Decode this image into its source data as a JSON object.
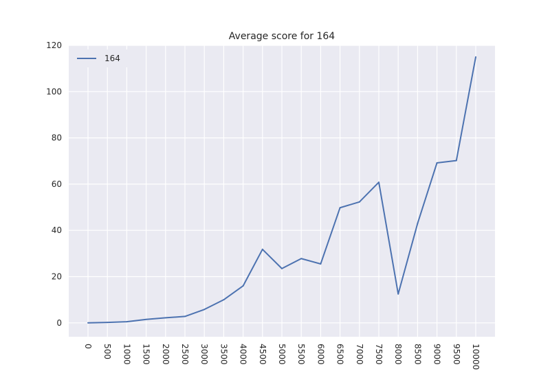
{
  "chart_data": {
    "type": "line",
    "title": "Average score for 164",
    "xlabel": "",
    "ylabel": "",
    "categories": [
      "0",
      "500",
      "1000",
      "1500",
      "2000",
      "2500",
      "3000",
      "3500",
      "4000",
      "4500",
      "5000",
      "5500",
      "6000",
      "6500",
      "7000",
      "7500",
      "8000",
      "8500",
      "9000",
      "9500",
      "10000"
    ],
    "series": [
      {
        "name": "164",
        "values": [
          0.0,
          0.2,
          0.5,
          1.5,
          2.2,
          2.8,
          5.8,
          10.0,
          16.0,
          31.8,
          23.5,
          27.8,
          25.5,
          49.8,
          52.3,
          60.8,
          12.5,
          43.0,
          69.2,
          70.2,
          115.0
        ]
      }
    ],
    "ylim": [
      -6,
      120
    ],
    "yticks": [
      0,
      20,
      40,
      60,
      80,
      100,
      120
    ],
    "grid": true,
    "legend": "top-left",
    "colors": {
      "background": "#eaeaf2",
      "grid": "#ffffff",
      "line": "#4c72b0",
      "text": "#262626"
    }
  }
}
